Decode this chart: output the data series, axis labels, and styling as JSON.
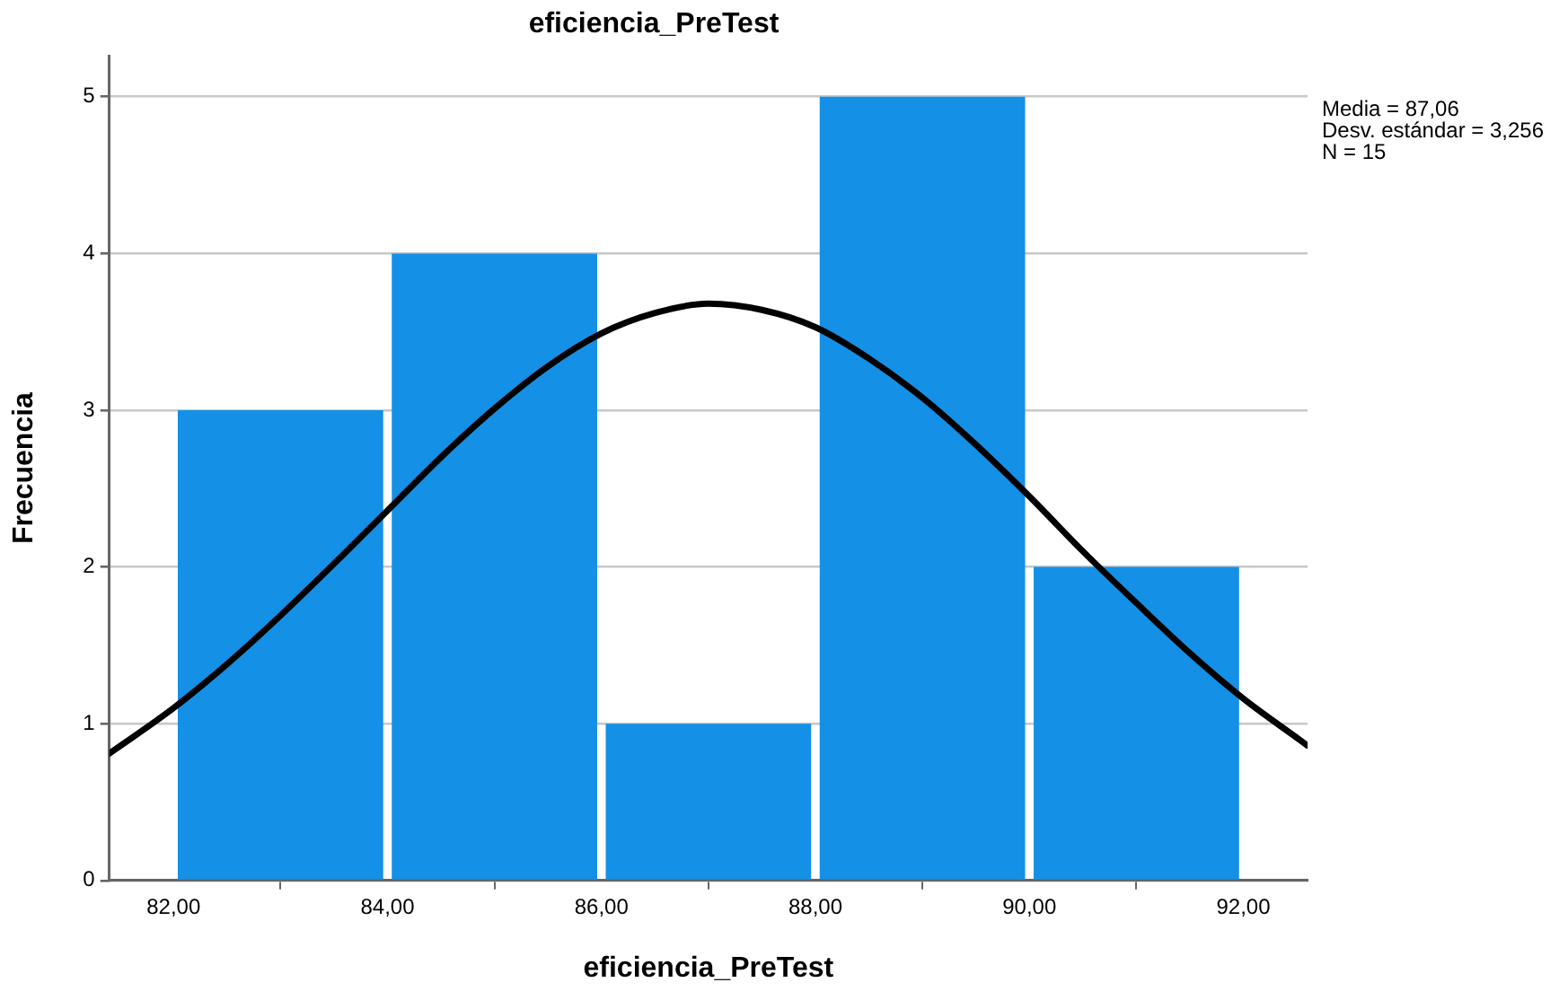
{
  "chart_data": {
    "type": "histogram",
    "title": "eficiencia_PreTest",
    "xlabel": "eficiencia_PreTest",
    "ylabel": "Frecuencia",
    "annotations": [
      "Media = 87,06",
      "Desv. estándar = 3,256",
      "N = 15"
    ],
    "bins": [
      82,
      84,
      86,
      88,
      90,
      92
    ],
    "values": [
      3,
      4,
      1,
      5,
      2
    ],
    "color": "#1490e6",
    "series": [
      {
        "type": "line",
        "color": "#000000",
        "x": [
          81.4,
          82,
          82.5,
          83,
          83.5,
          84,
          84.5,
          85,
          85.5,
          86,
          86.5,
          87,
          87.5,
          88,
          88.5,
          89,
          89.5,
          90,
          90.5,
          91,
          91.5,
          92,
          92.5,
          92.6
        ],
        "values": [
          0.81,
          1.1,
          1.38,
          1.69,
          2.02,
          2.36,
          2.7,
          3.01,
          3.28,
          3.49,
          3.62,
          3.68,
          3.64,
          3.53,
          3.33,
          3.08,
          2.78,
          2.45,
          2.1,
          1.77,
          1.45,
          1.16,
          0.91,
          0.86
        ]
      }
    ],
    "xlim": [
      81.4,
      92.6
    ],
    "xticks": [
      {
        "value": 82,
        "label": "82,00"
      },
      {
        "value": 84,
        "label": "84,00"
      },
      {
        "value": 86,
        "label": "86,00"
      },
      {
        "value": 88,
        "label": "88,00"
      },
      {
        "value": 90,
        "label": "90,00"
      },
      {
        "value": 92,
        "label": "92,00"
      }
    ],
    "ylim": [
      0,
      5.26
    ],
    "yticks": [
      0,
      1,
      2,
      3,
      4,
      5
    ],
    "grid": "y",
    "legend": false,
    "marker": "none",
    "line_style": "solid"
  }
}
